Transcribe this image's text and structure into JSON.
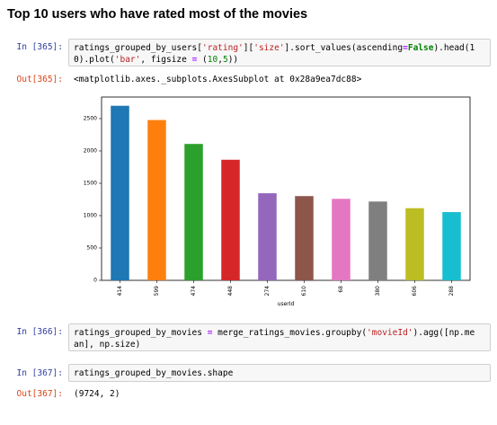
{
  "heading": "Top 10 users who have rated most of the movies",
  "cells": [
    {
      "prompt": "In [365]:",
      "code_line1": [
        "ratings_grouped_by_users[",
        "'rating'",
        "][",
        "'size'",
        "].sort_values(ascending",
        "=",
        "False",
        ").head(1"
      ],
      "code_line2": [
        "0).plot(",
        "'bar'",
        ", figsize ",
        "=",
        " (",
        "10",
        ",",
        "5",
        "))"
      ]
    },
    {
      "prompt": "Out[365]:",
      "text": "<matplotlib.axes._subplots.AxesSubplot at 0x28a9ea7dc88>"
    },
    {
      "prompt": "In [366]:",
      "code_line1": [
        "ratings_grouped_by_movies ",
        "=",
        " merge_ratings_movies.groupby(",
        "'movieId'",
        ").agg([np.me"
      ],
      "code_line2": [
        "an], np.size)"
      ]
    },
    {
      "prompt": "In [367]:",
      "code": "ratings_grouped_by_movies.shape"
    },
    {
      "prompt": "Out[367]:",
      "text": "(9724, 2)"
    }
  ],
  "chart_data": {
    "type": "bar",
    "categories": [
      "414",
      "599",
      "474",
      "448",
      "274",
      "610",
      "68",
      "380",
      "606",
      "288"
    ],
    "values": [
      2698,
      2478,
      2108,
      1864,
      1346,
      1302,
      1260,
      1218,
      1115,
      1055
    ],
    "colors": [
      "#1f77b4",
      "#ff7f0e",
      "#2ca02c",
      "#d62728",
      "#9467bd",
      "#8c564b",
      "#e377c2",
      "#7f7f7f",
      "#bcbd22",
      "#17becf"
    ],
    "xlabel": "userId",
    "ylabel": "",
    "ylim": [
      0,
      2833
    ],
    "yticks": [
      0,
      500,
      1000,
      1500,
      2000,
      2500
    ],
    "grid": false,
    "legend": false
  }
}
